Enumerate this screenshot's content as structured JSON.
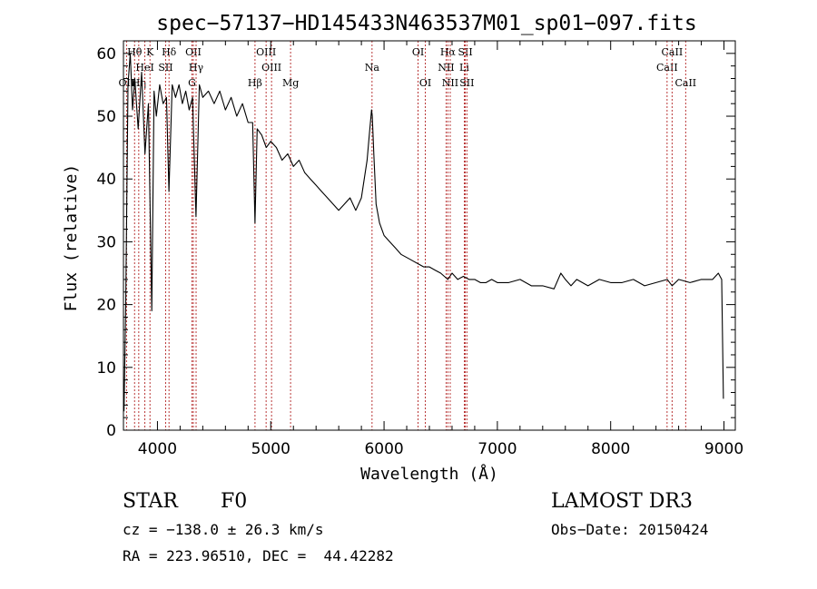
{
  "chart_data": {
    "type": "line",
    "title": "spec−57137−HD145433N463537M01_sp01−097.fits",
    "xlabel": "Wavelength (Å)",
    "ylabel": "Flux (relative)",
    "xlim": [
      3700,
      9100
    ],
    "ylim": [
      0,
      62
    ],
    "xticks": [
      4000,
      5000,
      6000,
      7000,
      8000,
      9000
    ],
    "yticks": [
      0,
      10,
      20,
      30,
      40,
      50,
      60
    ],
    "grid": false,
    "series": [
      {
        "name": "Flux",
        "x": [
          3705,
          3720,
          3740,
          3760,
          3780,
          3800,
          3830,
          3860,
          3890,
          3920,
          3950,
          3970,
          3990,
          4020,
          4050,
          4080,
          4101,
          4130,
          4160,
          4190,
          4220,
          4250,
          4280,
          4310,
          4340,
          4370,
          4400,
          4450,
          4500,
          4550,
          4600,
          4650,
          4700,
          4750,
          4800,
          4840,
          4861,
          4880,
          4920,
          4960,
          5000,
          5050,
          5100,
          5150,
          5200,
          5250,
          5300,
          5350,
          5400,
          5450,
          5500,
          5550,
          5600,
          5650,
          5700,
          5750,
          5800,
          5850,
          5870,
          5890,
          5896,
          5910,
          5930,
          5960,
          6000,
          6050,
          6100,
          6150,
          6200,
          6250,
          6300,
          6350,
          6400,
          6450,
          6500,
          6563,
          6600,
          6650,
          6700,
          6750,
          6800,
          6850,
          6900,
          6950,
          7000,
          7100,
          7200,
          7300,
          7400,
          7500,
          7560,
          7600,
          7650,
          7700,
          7800,
          7900,
          8000,
          8100,
          8200,
          8300,
          8400,
          8500,
          8542,
          8600,
          8700,
          8800,
          8900,
          8950,
          8980,
          8995
        ],
        "values": [
          3,
          20,
          55,
          60,
          51,
          56,
          48,
          57,
          44,
          52,
          19,
          54,
          50,
          55,
          52,
          53,
          38,
          55,
          53,
          55,
          52,
          54,
          51,
          53,
          34,
          55,
          53,
          54,
          52,
          54,
          51,
          53,
          50,
          52,
          49,
          49,
          33,
          48,
          47,
          45,
          46,
          45,
          43,
          44,
          42,
          43,
          41,
          40,
          39,
          38,
          37,
          36,
          35,
          36,
          37,
          35,
          37,
          43,
          47,
          51,
          50,
          44,
          36,
          33,
          31,
          30,
          29,
          28,
          27.5,
          27,
          26.5,
          26,
          26,
          25.5,
          25,
          24,
          25,
          24,
          24.5,
          24,
          24,
          23.5,
          23.5,
          24,
          23.5,
          23.5,
          24,
          23,
          23,
          22.5,
          25,
          24,
          23,
          24,
          23,
          24,
          23.5,
          23.5,
          24,
          23,
          23.5,
          24,
          23,
          24,
          23.5,
          24,
          24,
          25,
          24,
          5
        ]
      }
    ],
    "line_markers": [
      {
        "label": "OII",
        "wavelength": 3727,
        "row": "lower"
      },
      {
        "label": "Hθ",
        "wavelength": 3798,
        "row": "top"
      },
      {
        "label": "Hη",
        "wavelength": 3835,
        "row": "lower"
      },
      {
        "label": "K",
        "wavelength": 3934,
        "row": "top"
      },
      {
        "label": "HeI",
        "wavelength": 3889,
        "row": "middle"
      },
      {
        "label": "SII",
        "wavelength": 4072,
        "row": "middle"
      },
      {
        "label": "Hδ",
        "wavelength": 4102,
        "row": "top"
      },
      {
        "label": "G",
        "wavelength": 4305,
        "row": "lower"
      },
      {
        "label": "OII",
        "wavelength": 4317,
        "row": "top"
      },
      {
        "label": "Hγ",
        "wavelength": 4341,
        "row": "middle"
      },
      {
        "label": "Hβ",
        "wavelength": 4861,
        "row": "lower"
      },
      {
        "label": "OIII",
        "wavelength": 4959,
        "row": "top"
      },
      {
        "label": "OIII",
        "wavelength": 5007,
        "row": "middle"
      },
      {
        "label": "Mg",
        "wavelength": 5175,
        "row": "lower"
      },
      {
        "label": "Na",
        "wavelength": 5894,
        "row": "middle"
      },
      {
        "label": "OI",
        "wavelength": 6300,
        "row": "top"
      },
      {
        "label": "OI",
        "wavelength": 6364,
        "row": "lower"
      },
      {
        "label": "Hα",
        "wavelength": 6563,
        "row": "top"
      },
      {
        "label": "NII",
        "wavelength": 6548,
        "row": "middle"
      },
      {
        "label": "NII",
        "wavelength": 6584,
        "row": "lower"
      },
      {
        "label": "SII",
        "wavelength": 6717,
        "row": "top"
      },
      {
        "label": "Li",
        "wavelength": 6708,
        "row": "middle"
      },
      {
        "label": "SII",
        "wavelength": 6731,
        "row": "lower"
      },
      {
        "label": "CaII",
        "wavelength": 8498,
        "row": "middle"
      },
      {
        "label": "CaII",
        "wavelength": 8542,
        "row": "top"
      },
      {
        "label": "CaII",
        "wavelength": 8662,
        "row": "lower"
      }
    ]
  },
  "info": {
    "object_class": "STAR",
    "subclass": "F0",
    "survey": "LAMOST DR3",
    "redshift": "cz = −138.0 ± 26.3 km/s",
    "obs_date": "Obs−Date: 20150424",
    "coords": "RA = 223.96510, DEC =  44.42282"
  },
  "colors": {
    "spectrum": "#000000",
    "marker": "#b22222",
    "axes": "#000000"
  }
}
